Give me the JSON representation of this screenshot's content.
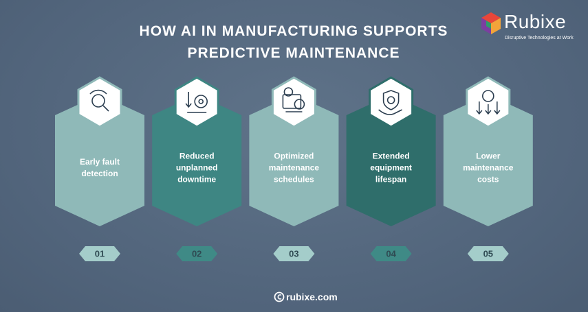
{
  "header": {
    "title": "HOW AI IN MANUFACTURING SUPPORTS PREDICTIVE MAINTENANCE"
  },
  "logo": {
    "name": "Rubixe",
    "tagline": "Disruptive Technologies at Work"
  },
  "steps": [
    {
      "number": "01",
      "label": "Early fault detection"
    },
    {
      "number": "02",
      "label": "Reduced unplanned downtime"
    },
    {
      "number": "03",
      "label": "Optimized maintenance schedules"
    },
    {
      "number": "04",
      "label": "Extended equipment lifespan"
    },
    {
      "number": "05",
      "label": "Lower maintenance costs"
    }
  ],
  "footer": {
    "website": "rubixe.com"
  }
}
